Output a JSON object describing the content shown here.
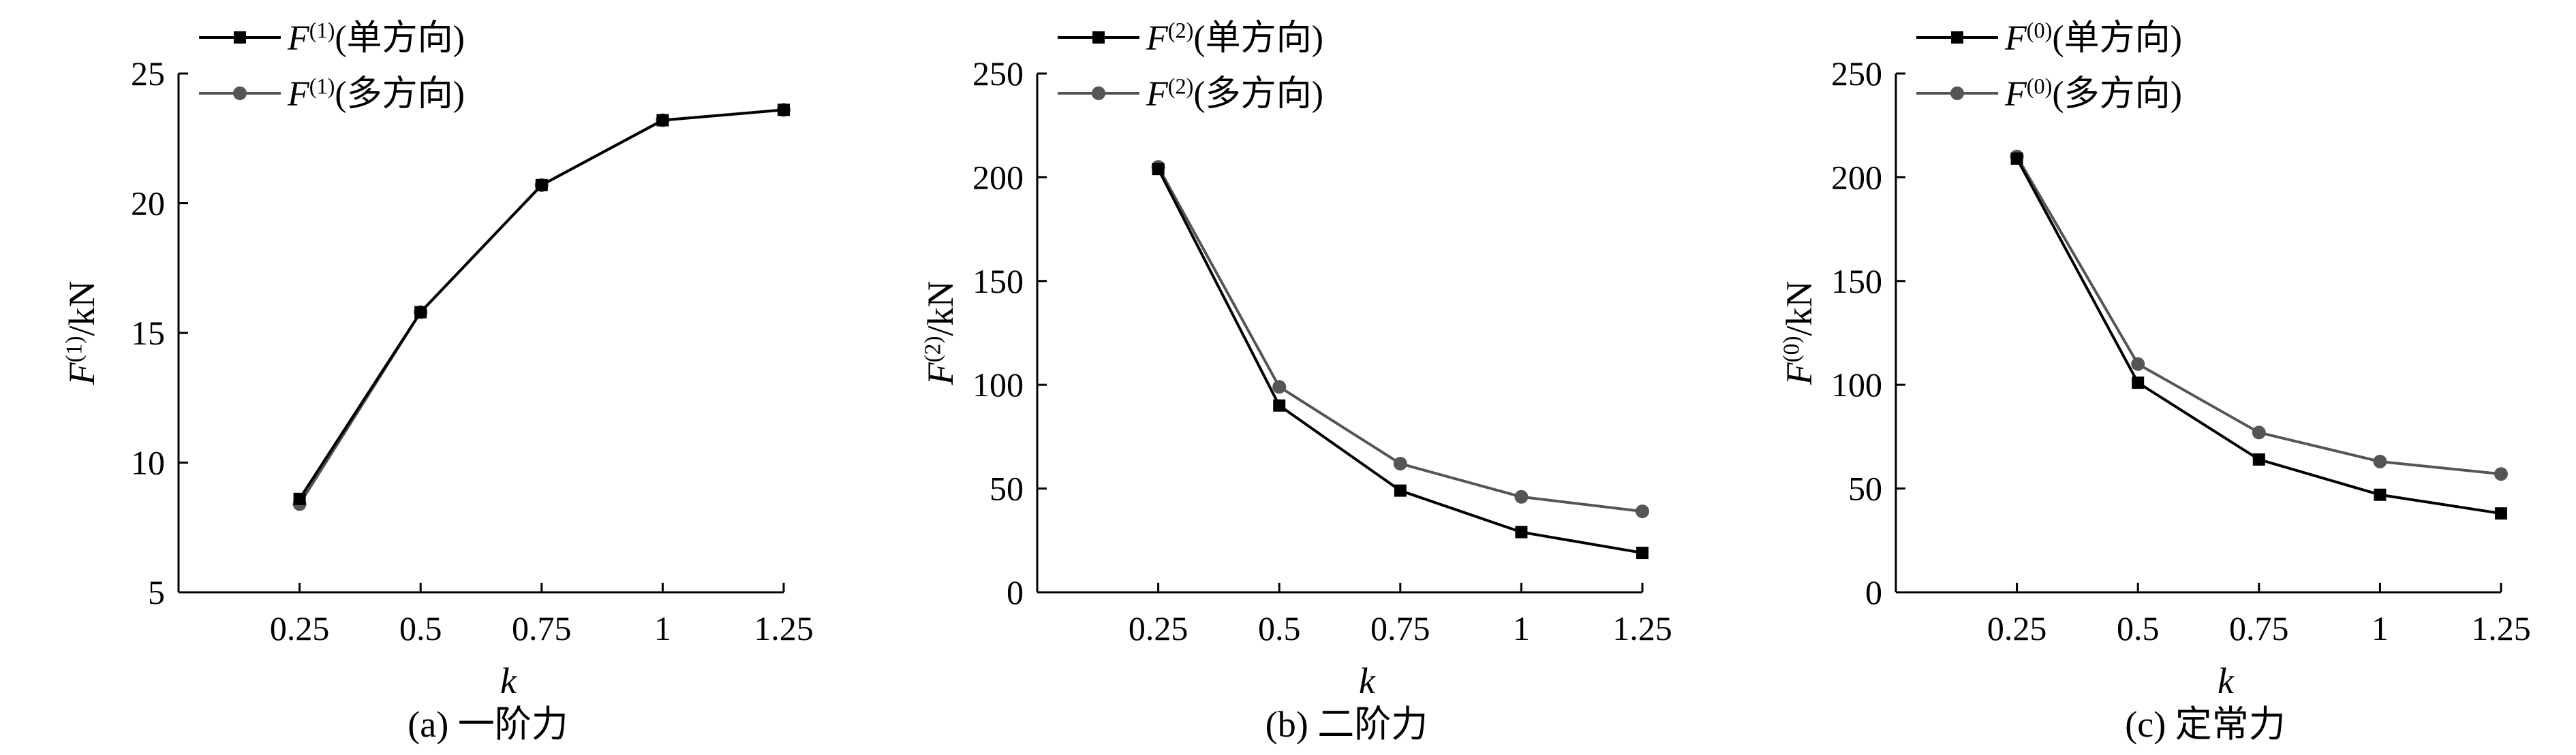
{
  "chart_data": [
    {
      "type": "line",
      "caption": "(a) 一阶力",
      "xlabel": "k",
      "ylabel": "F⁽¹⁾/kN",
      "ylim": [
        5,
        25
      ],
      "yticks": [
        5,
        10,
        15,
        20,
        25
      ],
      "x": [
        0.25,
        0.5,
        0.75,
        1,
        1.25
      ],
      "xticklabels": [
        "0.25",
        "0.5",
        "0.75",
        "1",
        "1.25"
      ],
      "series": [
        {
          "name": "F⁽¹⁾(单方向)",
          "marker": "square",
          "color": "#000000",
          "values": [
            8.6,
            15.8,
            20.7,
            23.2,
            23.6
          ]
        },
        {
          "name": "F⁽¹⁾(多方向)",
          "marker": "circle",
          "color": "#555555",
          "values": [
            8.4,
            15.8,
            20.7,
            23.2,
            23.6
          ]
        }
      ],
      "legend": "top-left",
      "grid": false
    },
    {
      "type": "line",
      "caption": "(b) 二阶力",
      "xlabel": "k",
      "ylabel": "F⁽²⁾/kN",
      "ylim": [
        0,
        250
      ],
      "yticks": [
        0,
        50,
        100,
        150,
        200,
        250
      ],
      "x": [
        0.25,
        0.5,
        0.75,
        1,
        1.25
      ],
      "xticklabels": [
        "0.25",
        "0.5",
        "0.75",
        "1",
        "1.25"
      ],
      "series": [
        {
          "name": "F⁽²⁾(单方向)",
          "marker": "square",
          "color": "#000000",
          "values": [
            204,
            90,
            49,
            29,
            19
          ]
        },
        {
          "name": "F⁽²⁾(多方向)",
          "marker": "circle",
          "color": "#555555",
          "values": [
            205,
            99,
            62,
            46,
            39
          ]
        }
      ],
      "legend": "top-left",
      "grid": false
    },
    {
      "type": "line",
      "caption": "(c) 定常力",
      "xlabel": "k",
      "ylabel": "F⁽⁰⁾/kN",
      "ylim": [
        0,
        250
      ],
      "yticks": [
        0,
        50,
        100,
        150,
        200,
        250
      ],
      "x": [
        0.25,
        0.5,
        0.75,
        1,
        1.25
      ],
      "xticklabels": [
        "0.25",
        "0.5",
        "0.75",
        "1",
        "1.25"
      ],
      "series": [
        {
          "name": "F⁽⁰⁾(单方向)",
          "marker": "square",
          "color": "#000000",
          "values": [
            209,
            101,
            64,
            47,
            38
          ]
        },
        {
          "name": "F⁽⁰⁾(多方向)",
          "marker": "circle",
          "color": "#555555",
          "values": [
            210,
            110,
            77,
            63,
            57
          ]
        }
      ],
      "legend": "top-left",
      "grid": false
    }
  ]
}
